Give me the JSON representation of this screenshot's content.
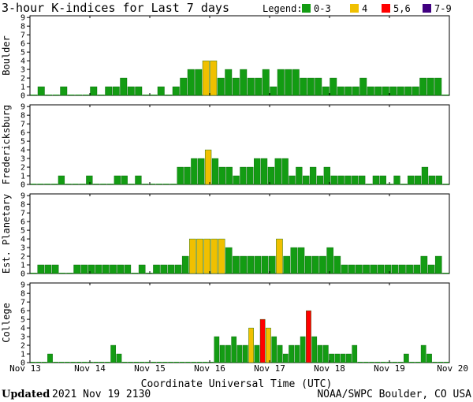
{
  "title": "3-hour K-indices for Last 7 days",
  "legend": {
    "label": "Legend:",
    "items": [
      {
        "label": "0-3",
        "color": "#139c13"
      },
      {
        "label": "4",
        "color": "#f0c000"
      },
      {
        "label": "5,6",
        "color": "#ff0000"
      },
      {
        "label": "7-9",
        "color": "#400080"
      }
    ]
  },
  "x_ticks": [
    "Nov 13",
    "Nov 14",
    "Nov 15",
    "Nov 16",
    "Nov 17",
    "Nov 18",
    "Nov 19",
    "Nov 20"
  ],
  "xlabel": "Coordinate Universal Time (UTC)",
  "footer": {
    "updated_label": "Updated",
    "updated_value": "2021 Nov 19 2130",
    "credit": "NOAA/SWPC Boulder, CO USA"
  },
  "chart_data": [
    {
      "type": "bar",
      "ylabel": "Boulder",
      "ylim": [
        0,
        9
      ],
      "values": [
        0,
        1,
        0,
        0,
        1,
        0,
        0,
        0,
        1,
        0,
        1,
        1,
        2,
        1,
        1,
        0,
        0,
        1,
        0,
        1,
        2,
        3,
        3,
        4,
        4,
        2,
        3,
        2,
        3,
        2,
        2,
        3,
        1,
        3,
        3,
        3,
        2,
        2,
        2,
        1,
        2,
        1,
        1,
        1,
        2,
        1,
        1,
        1,
        1,
        1,
        1,
        1,
        2,
        2,
        2,
        0
      ]
    },
    {
      "type": "bar",
      "ylabel": "Fredericksburg",
      "ylim": [
        0,
        9
      ],
      "values": [
        0,
        0,
        0,
        0,
        1,
        0,
        0,
        0,
        1,
        0,
        0,
        0,
        1,
        1,
        0,
        1,
        0,
        0,
        0,
        0,
        0,
        2,
        2,
        3,
        3,
        4,
        3,
        2,
        2,
        1,
        2,
        2,
        3,
        3,
        2,
        3,
        3,
        1,
        2,
        1,
        2,
        1,
        2,
        1,
        1,
        1,
        1,
        1,
        0,
        1,
        1,
        0,
        1,
        0,
        1,
        1,
        2,
        1,
        1,
        0
      ]
    },
    {
      "type": "bar",
      "ylabel": "Est. Planetary",
      "ylim": [
        0,
        9
      ],
      "values": [
        0,
        1,
        1,
        1,
        0,
        0,
        1,
        1,
        1,
        1,
        1,
        1,
        1,
        1,
        0,
        1,
        0,
        1,
        1,
        1,
        1,
        2,
        4,
        4,
        4,
        4,
        4,
        3,
        2,
        2,
        2,
        2,
        2,
        2,
        4,
        2,
        3,
        3,
        2,
        2,
        2,
        3,
        2,
        1,
        1,
        1,
        1,
        1,
        1,
        1,
        1,
        1,
        1,
        1,
        2,
        1,
        2,
        0
      ]
    },
    {
      "type": "bar",
      "ylabel": "College",
      "ylim": [
        0,
        9
      ],
      "values": [
        0,
        0,
        0,
        1,
        0,
        0,
        0,
        0,
        0,
        0,
        0,
        0,
        0,
        0,
        2,
        1,
        0,
        0,
        0,
        0,
        0,
        0,
        0,
        0,
        0,
        0,
        0,
        0,
        0,
        0,
        0,
        0,
        3,
        2,
        2,
        3,
        2,
        2,
        4,
        2,
        5,
        4,
        3,
        2,
        1,
        2,
        2,
        3,
        6,
        3,
        2,
        2,
        1,
        1,
        1,
        1,
        2,
        0,
        0,
        0,
        0,
        0,
        0,
        0,
        0,
        1,
        0,
        0,
        2,
        1,
        0,
        0,
        0
      ]
    }
  ]
}
